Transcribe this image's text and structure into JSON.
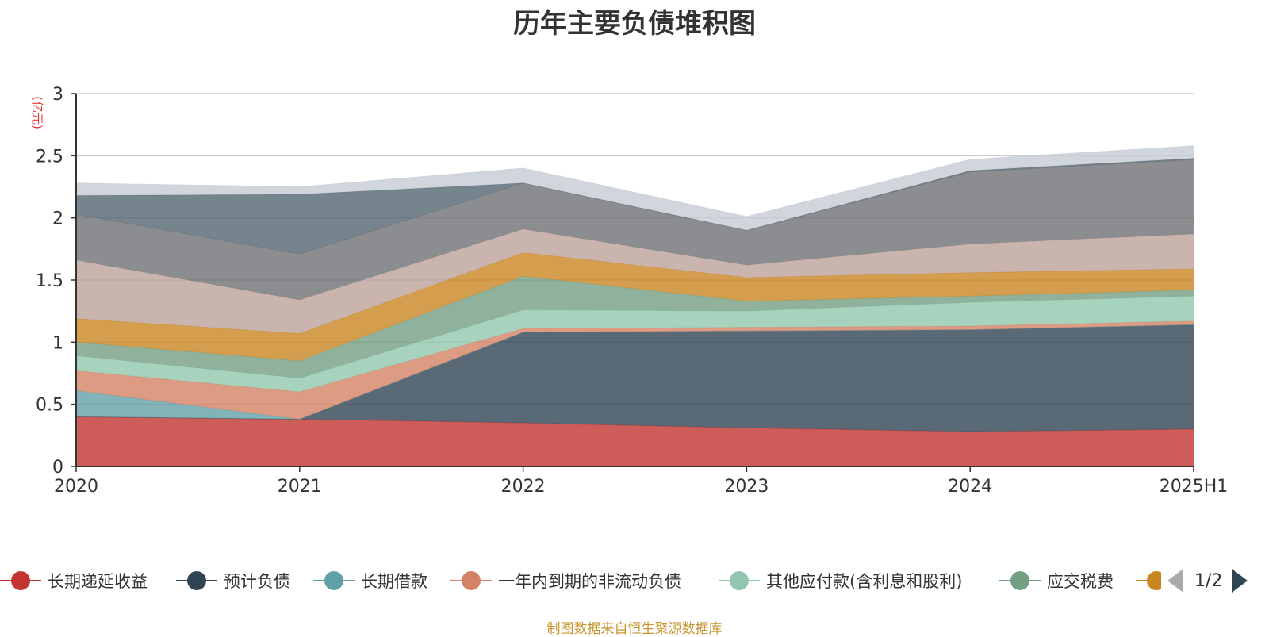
{
  "chart_data": {
    "type": "area",
    "stacked": true,
    "title": "历年主要负债堆积图",
    "unit_label": "(亿元)",
    "x": [
      "2020",
      "2021",
      "2022",
      "2023",
      "2024",
      "2025H1"
    ],
    "ylim": [
      0,
      3
    ],
    "yticks": [
      "0",
      "0.5",
      "1",
      "1.5",
      "2",
      "2.5",
      "3"
    ],
    "grid": true,
    "legend_position": "bottom",
    "series": [
      {
        "name": "长期递延收益",
        "color": "#c23531",
        "values": [
          0.4,
          0.38,
          0.35,
          0.31,
          0.28,
          0.3
        ]
      },
      {
        "name": "预计负债",
        "color": "#2f4554",
        "values": [
          0.0,
          0.0,
          0.73,
          0.78,
          0.82,
          0.84
        ]
      },
      {
        "name": "长期借款",
        "color": "#61a0a8",
        "values": [
          0.21,
          0.0,
          0.0,
          0.0,
          0.0,
          0.0
        ]
      },
      {
        "name": "一年内到期的非流动负债",
        "color": "#d48265",
        "values": [
          0.16,
          0.22,
          0.03,
          0.03,
          0.03,
          0.03
        ]
      },
      {
        "name": "其他应付款(含利息和股利)",
        "color": "#91c7ae",
        "values": [
          0.12,
          0.11,
          0.15,
          0.13,
          0.19,
          0.2
        ]
      },
      {
        "name": "应交税费",
        "color": "#749f83",
        "values": [
          0.11,
          0.14,
          0.27,
          0.08,
          0.05,
          0.05
        ]
      },
      {
        "name": "",
        "color": "#ca8622",
        "values": [
          0.19,
          0.22,
          0.19,
          0.19,
          0.19,
          0.17
        ]
      },
      {
        "name": "",
        "color": "#bda29a",
        "values": [
          0.47,
          0.27,
          0.19,
          0.1,
          0.23,
          0.28
        ]
      },
      {
        "name": "",
        "color": "#6e7074",
        "values": [
          0.37,
          0.37,
          0.37,
          0.28,
          0.58,
          0.6
        ]
      },
      {
        "name": "",
        "color": "#546570",
        "values": [
          0.15,
          0.48,
          0.0,
          0.0,
          0.01,
          0.01
        ]
      },
      {
        "name": "",
        "color": "#c4ccd3",
        "values": [
          0.1,
          0.06,
          0.12,
          0.11,
          0.09,
          0.1
        ]
      }
    ]
  },
  "legend": {
    "page_indicator": "1/2"
  },
  "source_note": "制图数据来自恒生聚源数据库"
}
